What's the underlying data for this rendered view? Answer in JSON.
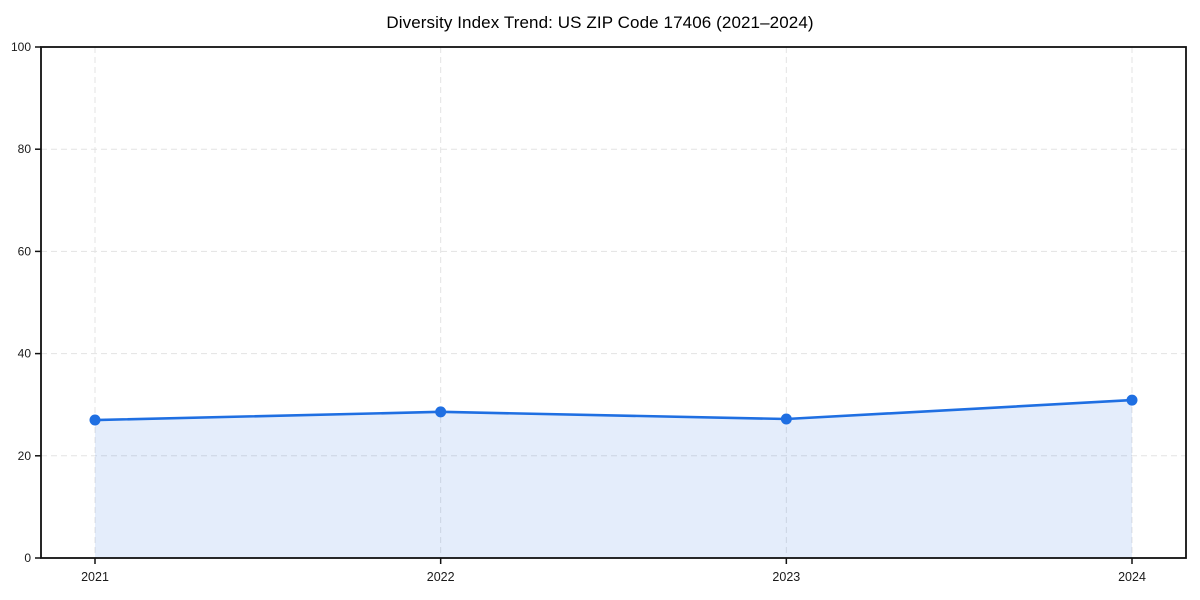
{
  "chart_data": {
    "type": "area",
    "title": "Diversity Index Trend: US ZIP Code 17406 (2021–2024)",
    "categories": [
      "2021",
      "2022",
      "2023",
      "2024"
    ],
    "series": [
      {
        "name": "Diversity Index",
        "values": [
          27.0,
          28.6,
          27.2,
          30.9
        ]
      }
    ],
    "xlabel": "",
    "ylabel": "",
    "ylim": [
      0,
      100
    ],
    "yticks": [
      0,
      20,
      40,
      60,
      80,
      100
    ],
    "grid": "dashed-both-axes",
    "legend": "none",
    "style": {
      "line_color": "#1f6fe2",
      "marker_color": "#1f6fe2",
      "fill_color": "#1f6fe2",
      "fill_opacity": 0.12,
      "grid_color": "#e3e3e3",
      "axis_color": "#111111",
      "tick_label_color": "#1a1a1a",
      "title_color": "#000000",
      "background_color": "#ffffff"
    }
  }
}
